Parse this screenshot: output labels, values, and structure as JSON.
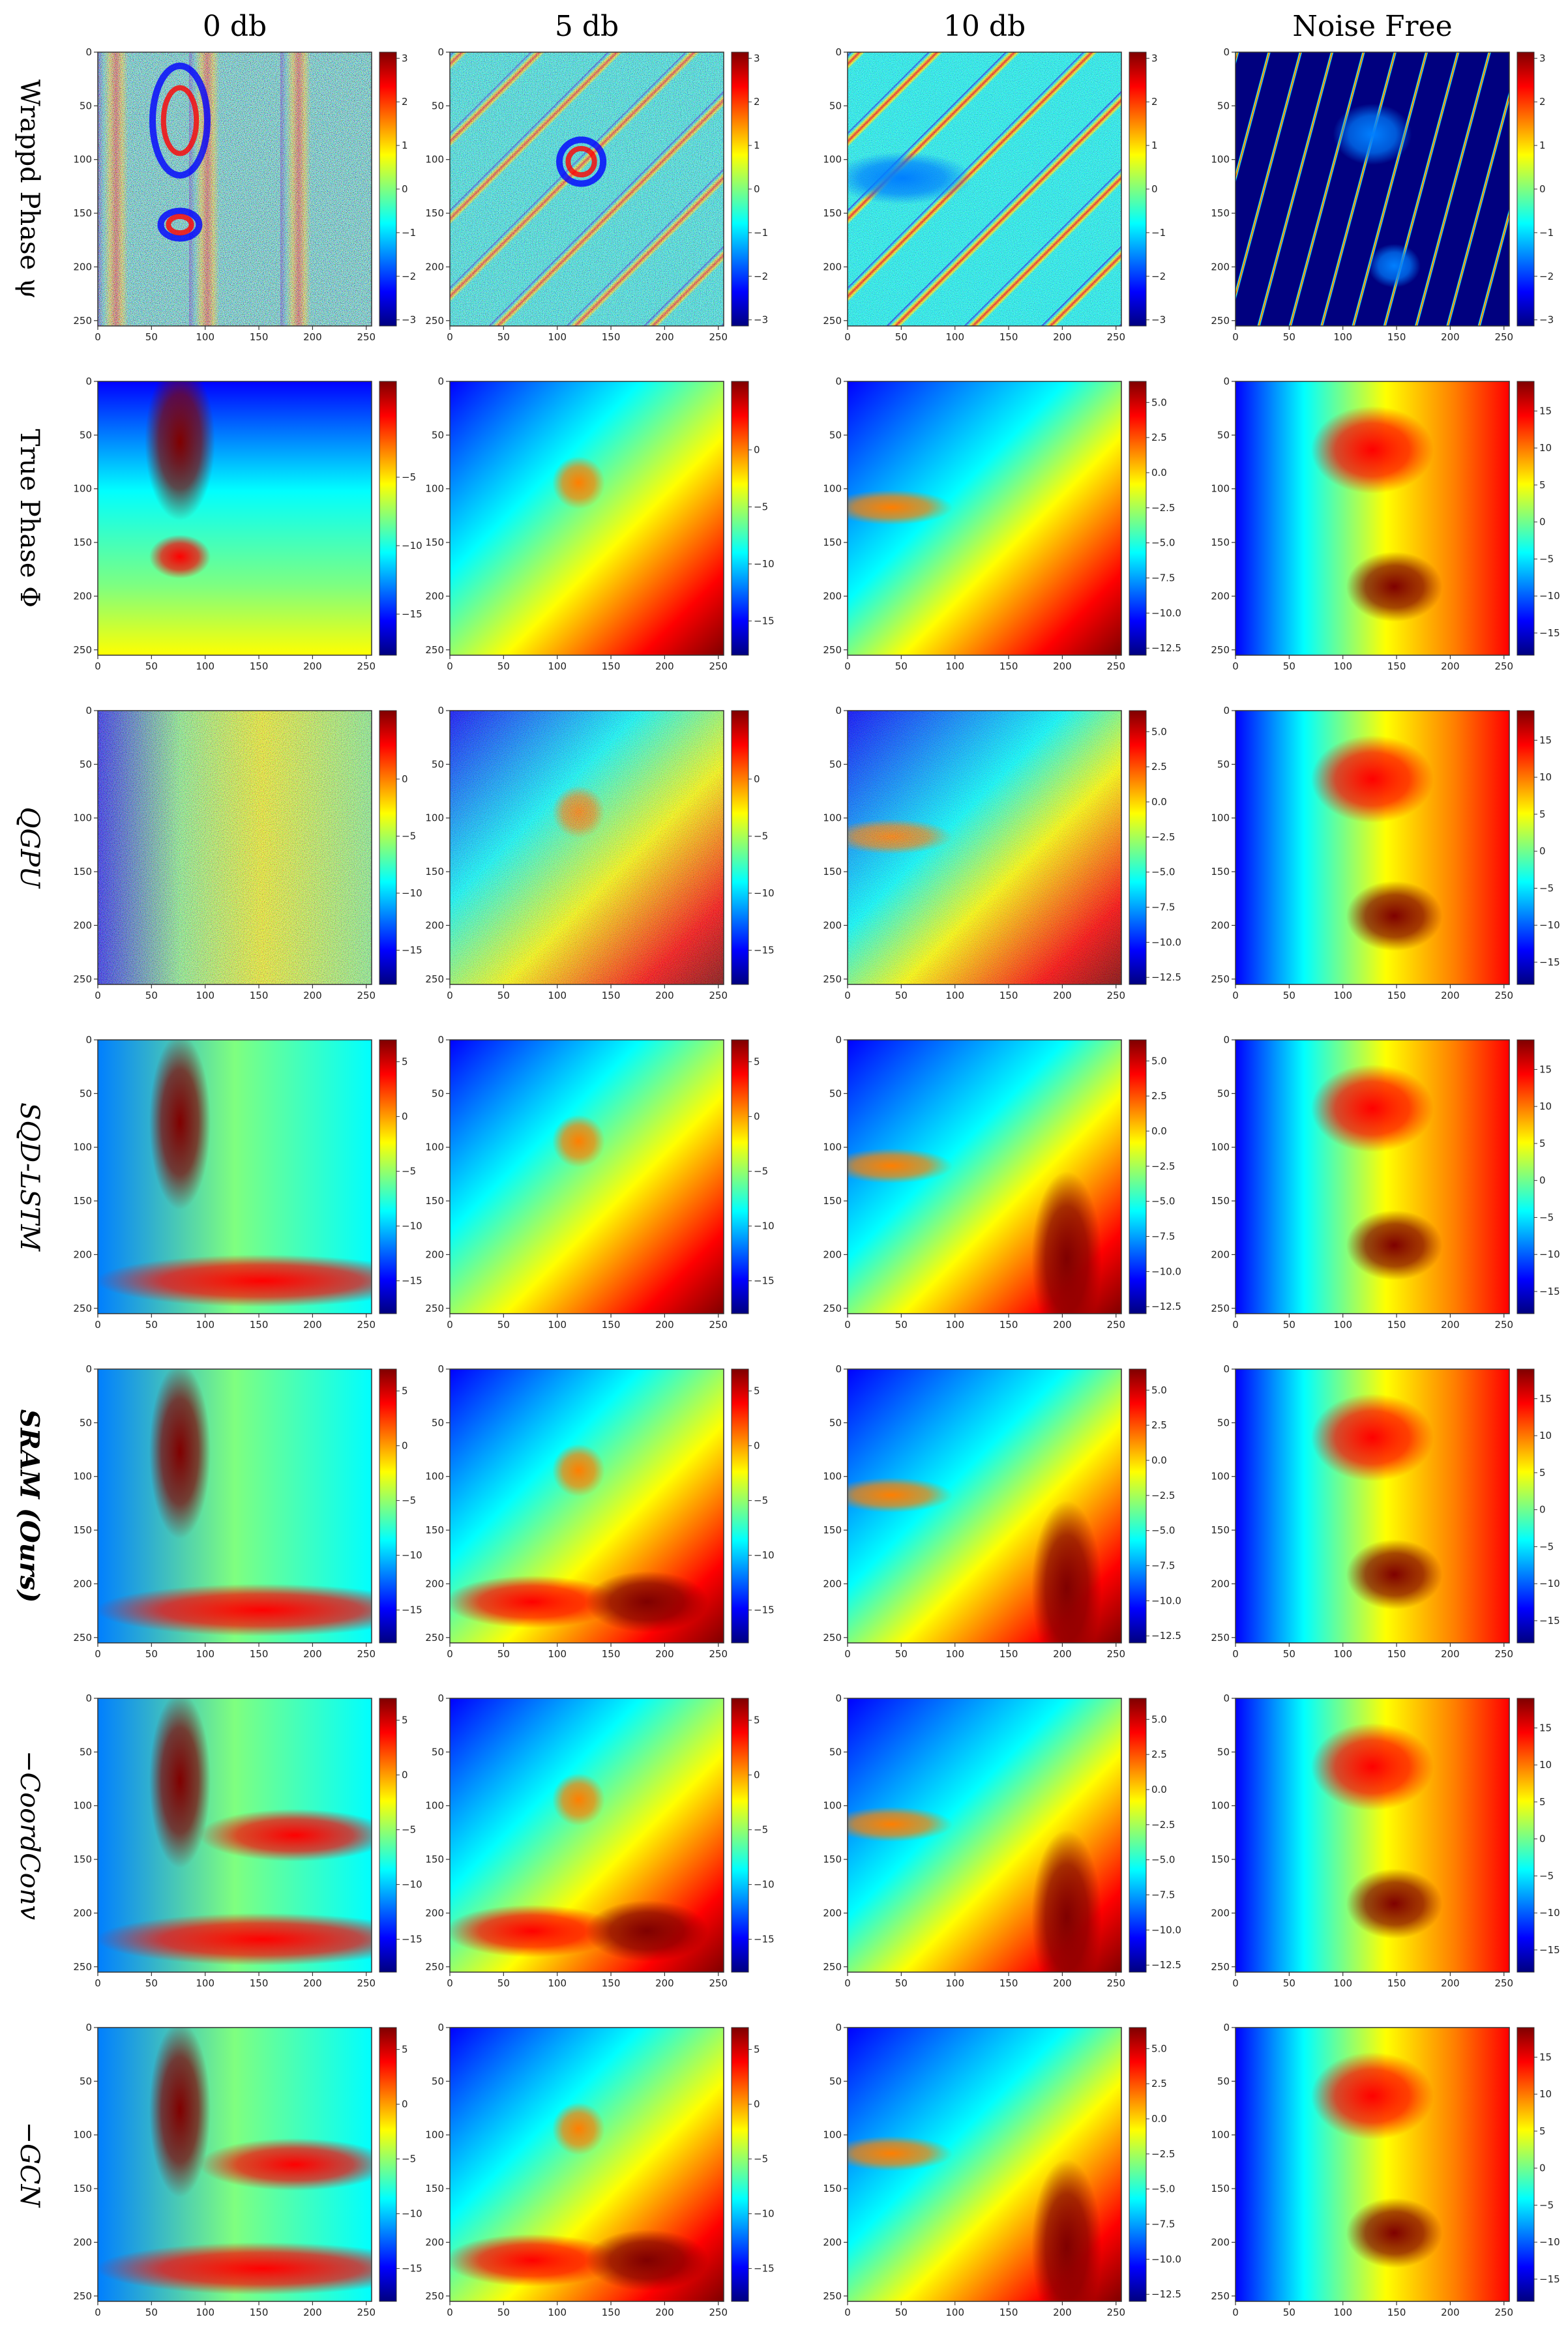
{
  "columns": [
    "0 db",
    "5 db",
    "10 db",
    "Noise Free"
  ],
  "rows": [
    {
      "label": "Wrappd Phase ψ",
      "style": "normal"
    },
    {
      "label": "True Phase Φ",
      "style": "normal"
    },
    {
      "label": "QGPU",
      "style": "italic"
    },
    {
      "label": "SQD-LSTM",
      "style": "italic"
    },
    {
      "label": "SRAM (Ours)",
      "style": "bold"
    },
    {
      "label": "−CoordConv",
      "style": "italic"
    },
    {
      "label": "−GCN",
      "style": "italic"
    }
  ],
  "colormap": [
    "#00007f",
    "#0000ff",
    "#007fff",
    "#00ffff",
    "#7fff7f",
    "#ffff00",
    "#ff7f00",
    "#ff0000",
    "#7f0000"
  ],
  "axis_ticks": [
    "0",
    "50",
    "100",
    "150",
    "200",
    "250"
  ],
  "chart_data": {
    "type": "heatmap",
    "x": [
      0,
      50,
      100,
      150,
      200,
      250
    ],
    "y": [
      0,
      50,
      100,
      150,
      200,
      250
    ],
    "xlim": [
      0,
      255
    ],
    "ylim": [
      255,
      0
    ],
    "colorbars": [
      [
        {
          "ticks": [
            "3",
            "2",
            "1",
            "0",
            "−1",
            "−2",
            "−3"
          ],
          "range": [
            -3.14,
            3.14
          ]
        },
        {
          "ticks": [
            "3",
            "2",
            "1",
            "0",
            "−1",
            "−2",
            "−3"
          ],
          "range": [
            -3.14,
            3.14
          ]
        },
        {
          "ticks": [
            "3",
            "2",
            "1",
            "0",
            "−1",
            "−2",
            "−3"
          ],
          "range": [
            -3.14,
            3.14
          ]
        },
        {
          "ticks": [
            "3",
            "2",
            "1",
            "0",
            "−1",
            "−2",
            "−3"
          ],
          "range": [
            -3.14,
            3.14
          ]
        }
      ],
      [
        {
          "ticks": [
            "−5",
            "−10",
            "−15"
          ],
          "range": [
            -18,
            2
          ]
        },
        {
          "ticks": [
            "0",
            "−5",
            "−10",
            "−15"
          ],
          "range": [
            -18,
            6
          ]
        },
        {
          "ticks": [
            "5.0",
            "2.5",
            "0.0",
            "−2.5",
            "−5.0",
            "−7.5",
            "−10.0",
            "−12.5"
          ],
          "range": [
            -13,
            6.5
          ]
        },
        {
          "ticks": [
            "15",
            "10",
            "5",
            "0",
            "−5",
            "−10",
            "−15"
          ],
          "range": [
            -18,
            19
          ]
        }
      ],
      [
        {
          "ticks": [
            "0",
            "−5",
            "−10",
            "−15"
          ],
          "range": [
            -18,
            6
          ]
        },
        {
          "ticks": [
            "0",
            "−5",
            "−10",
            "−15"
          ],
          "range": [
            -18,
            6
          ]
        },
        {
          "ticks": [
            "5.0",
            "2.5",
            "0.0",
            "−2.5",
            "−5.0",
            "−7.5",
            "−10.0",
            "−12.5"
          ],
          "range": [
            -13,
            6.5
          ]
        },
        {
          "ticks": [
            "15",
            "10",
            "5",
            "0",
            "−5",
            "−10",
            "−15"
          ],
          "range": [
            -18,
            19
          ]
        }
      ],
      [
        {
          "ticks": [
            "5",
            "0",
            "−5",
            "−10",
            "−15"
          ],
          "range": [
            -18,
            7
          ]
        },
        {
          "ticks": [
            "5",
            "0",
            "−5",
            "−10",
            "−15"
          ],
          "range": [
            -18,
            7
          ]
        },
        {
          "ticks": [
            "5.0",
            "2.5",
            "0.0",
            "−2.5",
            "−5.0",
            "−7.5",
            "−10.0",
            "−12.5"
          ],
          "range": [
            -13,
            6.5
          ]
        },
        {
          "ticks": [
            "15",
            "10",
            "5",
            "0",
            "−5",
            "−10",
            "−15"
          ],
          "range": [
            -18,
            19
          ]
        }
      ],
      [
        {
          "ticks": [
            "5",
            "0",
            "−5",
            "−10",
            "−15"
          ],
          "range": [
            -18,
            7
          ]
        },
        {
          "ticks": [
            "5",
            "0",
            "−5",
            "−10",
            "−15"
          ],
          "range": [
            -18,
            7
          ]
        },
        {
          "ticks": [
            "5.0",
            "2.5",
            "0.0",
            "−2.5",
            "−5.0",
            "−7.5",
            "−10.0",
            "−12.5"
          ],
          "range": [
            -13,
            6.5
          ]
        },
        {
          "ticks": [
            "15",
            "10",
            "5",
            "0",
            "−5",
            "−10",
            "−15"
          ],
          "range": [
            -18,
            19
          ]
        }
      ],
      [
        {
          "ticks": [
            "5",
            "0",
            "−5",
            "−10",
            "−15"
          ],
          "range": [
            -18,
            7
          ]
        },
        {
          "ticks": [
            "5",
            "0",
            "−5",
            "−10",
            "−15"
          ],
          "range": [
            -18,
            7
          ]
        },
        {
          "ticks": [
            "5.0",
            "2.5",
            "0.0",
            "−2.5",
            "−5.0",
            "−7.5",
            "−10.0",
            "−12.5"
          ],
          "range": [
            -13,
            6.5
          ]
        },
        {
          "ticks": [
            "15",
            "10",
            "5",
            "0",
            "−5",
            "−10",
            "−15"
          ],
          "range": [
            -18,
            19
          ]
        }
      ],
      [
        {
          "ticks": [
            "5",
            "0",
            "−5",
            "−10",
            "−15"
          ],
          "range": [
            -18,
            7
          ]
        },
        {
          "ticks": [
            "5",
            "0",
            "−5",
            "−10",
            "−15"
          ],
          "range": [
            -18,
            7
          ]
        },
        {
          "ticks": [
            "5.0",
            "2.5",
            "0.0",
            "−2.5",
            "−5.0",
            "−7.5",
            "−10.0",
            "−12.5"
          ],
          "range": [
            -13,
            6.5
          ]
        },
        {
          "ticks": [
            "15",
            "10",
            "5",
            "0",
            "−5",
            "−10",
            "−15"
          ],
          "range": [
            -18,
            19
          ]
        }
      ]
    ]
  }
}
